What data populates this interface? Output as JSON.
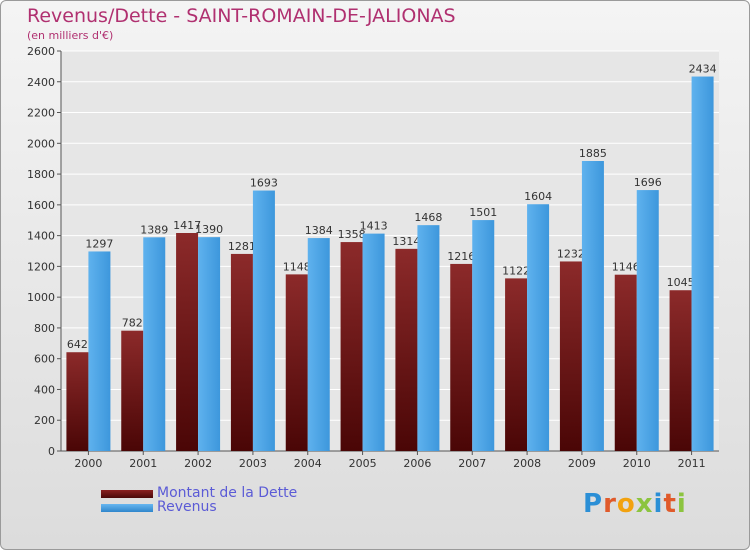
{
  "chart_data": {
    "type": "bar",
    "title": "Revenus/Dette - SAINT-ROMAIN-DE-JALIONAS",
    "subtitle": "(en milliers d'€)",
    "categories": [
      "2000",
      "2001",
      "2002",
      "2003",
      "2004",
      "2005",
      "2006",
      "2007",
      "2008",
      "2009",
      "2010",
      "2011"
    ],
    "series": [
      {
        "name": "Montant de la Dette",
        "color": "#7a1a1a",
        "values": [
          642,
          782,
          1417,
          1281,
          1148,
          1358,
          1314,
          1216,
          1122,
          1232,
          1146,
          1045
        ],
        "labels": [
          "642",
          "782",
          "1417",
          "1281",
          "1148",
          "1358",
          "1314",
          "1216",
          "1122",
          "1232",
          "1146",
          "1045"
        ]
      },
      {
        "name": "Revenus",
        "color": "#4aa3e6",
        "values": [
          1297,
          1389,
          1390,
          1693,
          1384,
          1413,
          1468,
          1501,
          1604,
          1885,
          1696,
          2434
        ],
        "labels": [
          "1297",
          "1389",
          "1390",
          "1693",
          "1384",
          "1413",
          "1468",
          "1501",
          "1604",
          "1885",
          "1696",
          "2434"
        ]
      }
    ],
    "ylim": [
      0,
      2600
    ],
    "yticks": [
      "0",
      "200",
      "400",
      "600",
      "800",
      "1000",
      "1200",
      "1400",
      "1600",
      "1800",
      "2000",
      "2200",
      "2400",
      "2600"
    ],
    "xlabel": "",
    "ylabel": "",
    "legend_position": "bottom-left"
  },
  "legend": {
    "dette_label": "Montant de la Dette",
    "revenus_label": "Revenus"
  },
  "logo": {
    "letters": [
      "P",
      "r",
      "o",
      "x",
      "i",
      "t"
    ],
    "letter7": "i"
  }
}
